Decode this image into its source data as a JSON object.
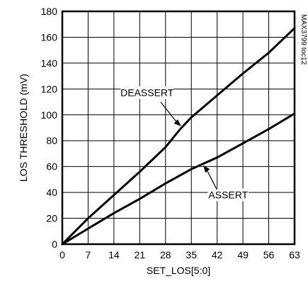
{
  "chart_data": {
    "type": "line",
    "title": "",
    "xlabel": "SET_LOS[5:0]",
    "ylabel": "LOS THRESHOLD (mV)",
    "xlim": [
      0,
      63
    ],
    "ylim": [
      0,
      180
    ],
    "x_ticks": [
      0,
      7,
      14,
      21,
      28,
      35,
      42,
      49,
      56,
      63
    ],
    "y_ticks": [
      0,
      20,
      40,
      60,
      80,
      100,
      120,
      140,
      160,
      180
    ],
    "grid": true,
    "legend": "none",
    "series": [
      {
        "name": "DEASSERT",
        "x": [
          0,
          7,
          14,
          21,
          28,
          32,
          35,
          42,
          49,
          56,
          63
        ],
        "y": [
          0,
          20,
          38,
          56,
          75,
          89,
          98,
          115,
          132,
          148,
          167
        ]
      },
      {
        "name": "ASSERT",
        "x": [
          0,
          7,
          14,
          21,
          28,
          35,
          42,
          49,
          56,
          63
        ],
        "y": [
          0,
          12,
          24,
          35,
          47,
          58,
          67,
          78,
          89,
          101
        ]
      }
    ],
    "annotations": [
      {
        "text": "DEASSERT",
        "series": "DEASSERT",
        "at_x": 32.5,
        "label_x": 23,
        "label_y": 115
      },
      {
        "text": "ASSERT",
        "series": "ASSERT",
        "at_x": 38,
        "label_x": 45,
        "label_y": 36
      }
    ],
    "watermark": "MAX3799 toc12"
  }
}
